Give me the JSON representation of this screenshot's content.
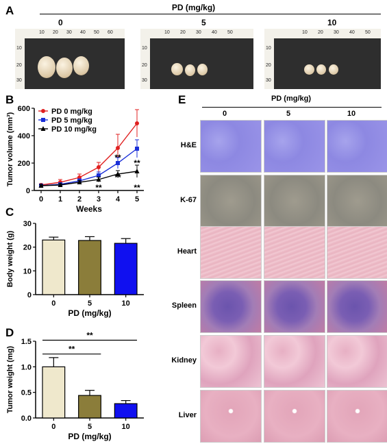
{
  "panels": {
    "a": "A",
    "b": "B",
    "c": "C",
    "d": "D",
    "e": "E"
  },
  "panel_a": {
    "title": "PD (mg/kg)",
    "groups": [
      "0",
      "5",
      "10"
    ],
    "ruler_h": [
      "10",
      "20",
      "30",
      "40",
      "50",
      "60"
    ],
    "ruler_v": [
      "10",
      "20",
      "30"
    ]
  },
  "panel_e": {
    "title": "PD (mg/kg)",
    "columns": [
      "0",
      "5",
      "10"
    ],
    "rows": [
      "H&E",
      "K-67",
      "Heart",
      "Spleen",
      "Kidney",
      "Liver"
    ]
  },
  "chart_data": [
    {
      "id": "B",
      "type": "line",
      "x": [
        0,
        1,
        2,
        3,
        4,
        5
      ],
      "xlabel": "Weeks",
      "ylabel": "Tumor volume (mm³)",
      "ylim": [
        0,
        600
      ],
      "yticks": [
        0,
        200,
        400,
        600
      ],
      "legend": "top-left",
      "series": [
        {
          "name": "PD  0 mg/kg",
          "color": "#e02020",
          "marker": "circle",
          "values": [
            40,
            60,
            95,
            170,
            310,
            490
          ],
          "errors": [
            10,
            20,
            25,
            35,
            100,
            100
          ]
        },
        {
          "name": "PD  5 mg/kg",
          "color": "#1a2fd8",
          "marker": "square",
          "values": [
            35,
            45,
            70,
            110,
            200,
            305
          ],
          "errors": [
            8,
            12,
            15,
            25,
            40,
            65
          ]
        },
        {
          "name": "PD  10 mg/kg",
          "color": "#000000",
          "marker": "triangle",
          "values": [
            35,
            40,
            60,
            80,
            120,
            140
          ],
          "errors": [
            8,
            10,
            12,
            18,
            25,
            45
          ]
        }
      ],
      "annotations": [
        {
          "x": 3,
          "y": 20,
          "text": "**"
        },
        {
          "x": 4,
          "y": 240,
          "text": "**"
        },
        {
          "x": 4,
          "y": 95,
          "text": "**"
        },
        {
          "x": 5,
          "y": 200,
          "text": "**"
        },
        {
          "x": 5,
          "y": 20,
          "text": "**"
        }
      ]
    },
    {
      "id": "C",
      "type": "bar",
      "categories": [
        "0",
        "5",
        "10"
      ],
      "values": [
        23,
        22.8,
        21.6
      ],
      "errors": [
        1.2,
        1.6,
        2.0
      ],
      "colors": [
        "#efe8cc",
        "#8b7d3a",
        "#1010f0"
      ],
      "xlabel": "PD (mg/kg)",
      "ylabel": "Body weight (g)",
      "ylim": [
        0,
        30
      ],
      "yticks": [
        0,
        10,
        20,
        30
      ]
    },
    {
      "id": "D",
      "type": "bar",
      "categories": [
        "0",
        "5",
        "10"
      ],
      "values": [
        1.0,
        0.44,
        0.28
      ],
      "errors": [
        0.18,
        0.1,
        0.06
      ],
      "colors": [
        "#efe8cc",
        "#8b7d3a",
        "#1010f0"
      ],
      "xlabel": "PD (mg/kg)",
      "ylabel": "Tumor weight (mg)",
      "ylim": [
        0,
        1.5
      ],
      "yticks": [
        "0.0",
        "0.5",
        "1.0",
        "1.5"
      ],
      "significance": [
        {
          "from": 0,
          "to": 1,
          "text": "**"
        },
        {
          "from": 0,
          "to": 2,
          "text": "**"
        }
      ]
    }
  ]
}
